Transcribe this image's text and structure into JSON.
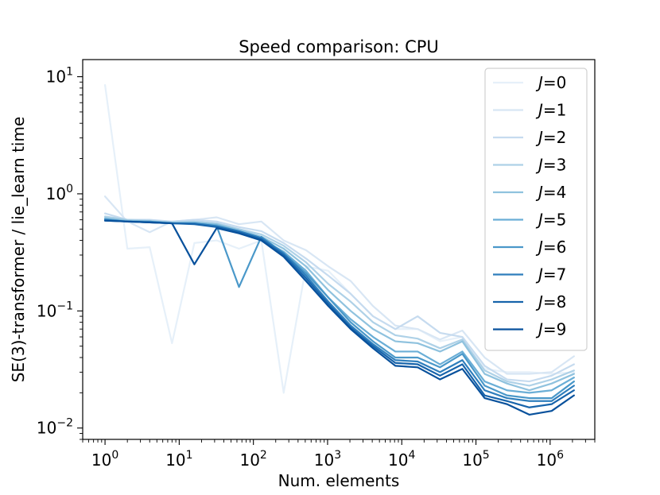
{
  "chart_data": {
    "type": "line",
    "title": "Speed comparison: CPU",
    "xlabel": "Num. elements",
    "ylabel": "SE(3)-transformer / lie_learn time",
    "xscale": "log",
    "yscale": "log",
    "xlim": [
      0.5,
      4000000
    ],
    "ylim": [
      0.008,
      14
    ],
    "x_tick_labels": [
      {
        "value": 1,
        "base": "10",
        "exp": "0"
      },
      {
        "value": 10,
        "base": "10",
        "exp": "1"
      },
      {
        "value": 100,
        "base": "10",
        "exp": "2"
      },
      {
        "value": 1000,
        "base": "10",
        "exp": "3"
      },
      {
        "value": 10000,
        "base": "10",
        "exp": "4"
      },
      {
        "value": 100000,
        "base": "10",
        "exp": "5"
      },
      {
        "value": 1000000,
        "base": "10",
        "exp": "6"
      }
    ],
    "y_tick_labels": [
      {
        "value": 0.01,
        "base": "10",
        "exp": "−2"
      },
      {
        "value": 0.1,
        "base": "10",
        "exp": "−1"
      },
      {
        "value": 1,
        "base": "10",
        "exp": "0"
      },
      {
        "value": 10,
        "base": "10",
        "exp": "1"
      }
    ],
    "legend_position": "top-right",
    "x": [
      1,
      2,
      4,
      8,
      16,
      32,
      64,
      128,
      256,
      512,
      1024,
      2048,
      4096,
      8192,
      16384,
      32768,
      65536,
      131072,
      262144,
      524288,
      1048576,
      2097152
    ],
    "series": [
      {
        "name": "J=0",
        "label_symbol": "J",
        "label_value": "=0",
        "color": "#e6f0f9",
        "values": [
          8.5,
          0.34,
          0.35,
          0.053,
          0.38,
          0.4,
          0.34,
          0.4,
          0.02,
          0.24,
          0.22,
          0.14,
          0.09,
          0.07,
          0.07,
          0.055,
          0.06,
          0.032,
          0.03,
          0.03,
          0.029,
          0.03
        ]
      },
      {
        "name": "J=1",
        "label_symbol": "J",
        "label_value": "=1",
        "color": "#d8e6f4",
        "values": [
          0.95,
          0.58,
          0.47,
          0.58,
          0.6,
          0.63,
          0.55,
          0.58,
          0.4,
          0.33,
          0.24,
          0.18,
          0.11,
          0.075,
          0.07,
          0.057,
          0.068,
          0.04,
          0.029,
          0.029,
          0.03,
          0.041
        ]
      },
      {
        "name": "J=2",
        "label_symbol": "J",
        "label_value": "=2",
        "color": "#c6dbef",
        "values": [
          0.68,
          0.6,
          0.6,
          0.58,
          0.6,
          0.58,
          0.52,
          0.48,
          0.38,
          0.28,
          0.2,
          0.14,
          0.09,
          0.07,
          0.09,
          0.065,
          0.06,
          0.034,
          0.026,
          0.025,
          0.028,
          0.035
        ]
      },
      {
        "name": "J=3",
        "label_symbol": "J",
        "label_value": "=3",
        "color": "#aed1e7",
        "values": [
          0.64,
          0.6,
          0.59,
          0.57,
          0.58,
          0.56,
          0.5,
          0.45,
          0.36,
          0.26,
          0.17,
          0.12,
          0.08,
          0.062,
          0.058,
          0.048,
          0.057,
          0.031,
          0.025,
          0.023,
          0.026,
          0.031
        ]
      },
      {
        "name": "J=4",
        "label_symbol": "J",
        "label_value": "=4",
        "color": "#8fc2de",
        "values": [
          0.62,
          0.59,
          0.58,
          0.57,
          0.57,
          0.55,
          0.49,
          0.43,
          0.34,
          0.24,
          0.15,
          0.1,
          0.07,
          0.055,
          0.053,
          0.045,
          0.055,
          0.029,
          0.024,
          0.021,
          0.024,
          0.029
        ]
      },
      {
        "name": "J=5",
        "label_symbol": "J",
        "label_value": "=5",
        "color": "#6aaed6",
        "values": [
          0.61,
          0.58,
          0.58,
          0.56,
          0.56,
          0.54,
          0.48,
          0.41,
          0.32,
          0.22,
          0.13,
          0.085,
          0.06,
          0.045,
          0.045,
          0.035,
          0.045,
          0.025,
          0.021,
          0.02,
          0.021,
          0.027
        ]
      },
      {
        "name": "J=6",
        "label_symbol": "J",
        "label_value": "=6",
        "color": "#4a98c9",
        "values": [
          0.6,
          0.58,
          0.58,
          0.56,
          0.56,
          0.53,
          0.16,
          0.43,
          0.31,
          0.21,
          0.13,
          0.08,
          0.055,
          0.04,
          0.04,
          0.033,
          0.043,
          0.023,
          0.019,
          0.018,
          0.018,
          0.025
        ]
      },
      {
        "name": "J=7",
        "label_symbol": "J",
        "label_value": "=7",
        "color": "#2e7ebc",
        "values": [
          0.6,
          0.58,
          0.57,
          0.56,
          0.56,
          0.53,
          0.48,
          0.42,
          0.31,
          0.2,
          0.12,
          0.075,
          0.052,
          0.038,
          0.037,
          0.03,
          0.038,
          0.021,
          0.018,
          0.017,
          0.017,
          0.023
        ]
      },
      {
        "name": "J=8",
        "label_symbol": "J",
        "label_value": "=8",
        "color": "#1764ab",
        "values": [
          0.59,
          0.58,
          0.57,
          0.56,
          0.55,
          0.52,
          0.47,
          0.41,
          0.3,
          0.19,
          0.115,
          0.072,
          0.05,
          0.036,
          0.035,
          0.028,
          0.035,
          0.019,
          0.017,
          0.015,
          0.016,
          0.021
        ]
      },
      {
        "name": "J=9",
        "label_symbol": "J",
        "label_value": "=9",
        "color": "#08519c",
        "values": [
          0.59,
          0.58,
          0.57,
          0.56,
          0.25,
          0.51,
          0.46,
          0.4,
          0.29,
          0.18,
          0.11,
          0.07,
          0.048,
          0.034,
          0.033,
          0.026,
          0.032,
          0.018,
          0.016,
          0.013,
          0.014,
          0.019
        ]
      }
    ]
  }
}
